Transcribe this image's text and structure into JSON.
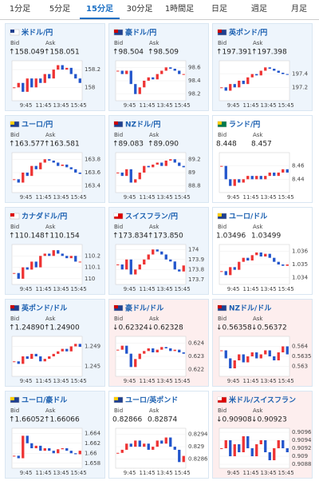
{
  "tabs": {
    "items": [
      "1分足",
      "5分足",
      "15分足",
      "30分足",
      "1時間足",
      "日足",
      "週足",
      "月足"
    ],
    "selected": 2
  },
  "bid_label": "Bid",
  "ask_label": "Ask",
  "tiles": [
    {
      "name": "米ドル/円",
      "bid": "↑158.049",
      "ask": "↑158.051",
      "bg": "#eef5fc",
      "flag": [
        "#fff",
        "#1f3f8f"
      ],
      "ylim": [
        157.85,
        158.3
      ],
      "yticks": [
        158.2,
        158
      ],
      "xticks": [
        "9:45",
        "11:45",
        "13:45",
        "15:45"
      ],
      "closes": [
        158.0,
        158.05,
        157.95,
        158.1,
        158.0,
        158.1,
        158.05,
        158.15,
        158.1,
        158.2,
        158.25,
        158.2,
        158.22,
        158.15,
        158.1,
        158.05
      ]
    },
    {
      "name": "豪ドル/円",
      "bid": "↑98.504",
      "ask": "↑98.509",
      "bg": "#eef5fc",
      "flag": [
        "#1f3f8f",
        "#c00"
      ],
      "ylim": [
        98.1,
        98.7
      ],
      "yticks": [
        98.6,
        98.4,
        98.2
      ],
      "xticks": [
        "9:45",
        "11:45",
        "13:45",
        "15:45"
      ],
      "closes": [
        98.55,
        98.5,
        98.55,
        98.35,
        98.2,
        98.3,
        98.4,
        98.45,
        98.42,
        98.5,
        98.55,
        98.6,
        98.58,
        98.55,
        98.5,
        98.5
      ]
    },
    {
      "name": "英ポンド/円",
      "bid": "↑197.391",
      "ask": "↑197.398",
      "bg": "#eef5fc",
      "flag": [
        "#1f3f8f",
        "#c00"
      ],
      "ylim": [
        197.0,
        197.6
      ],
      "yticks": [
        197.4,
        197.2
      ],
      "xticks": [
        "9:45",
        "11:45",
        "13:45",
        "15:45"
      ],
      "closes": [
        197.2,
        197.15,
        197.25,
        197.2,
        197.3,
        197.25,
        197.35,
        197.4,
        197.38,
        197.45,
        197.5,
        197.48,
        197.45,
        197.42,
        197.4,
        197.39
      ]
    },
    {
      "name": "ユーロ/円",
      "bid": "↑163.577",
      "ask": "↑163.581",
      "bg": "#eef5fc",
      "flag": [
        "#1f3f8f",
        "#fc0"
      ],
      "ylim": [
        163.3,
        163.9
      ],
      "yticks": [
        163.8,
        163.6,
        163.4
      ],
      "xticks": [
        "9:45",
        "11:45",
        "13:45",
        "15:45"
      ],
      "closes": [
        163.5,
        163.45,
        163.6,
        163.55,
        163.7,
        163.65,
        163.75,
        163.8,
        163.78,
        163.75,
        163.7,
        163.72,
        163.68,
        163.65,
        163.6,
        163.58
      ]
    },
    {
      "name": "NZドル/円",
      "bid": "↑89.083",
      "ask": "↑89.090",
      "bg": "#eef5fc",
      "flag": [
        "#1f3f8f",
        "#c00"
      ],
      "ylim": [
        88.7,
        89.3
      ],
      "yticks": [
        89.2,
        89,
        88.8
      ],
      "xticks": [
        "9:45",
        "11:45",
        "13:45",
        "15:45"
      ],
      "closes": [
        89.0,
        88.95,
        89.05,
        88.85,
        88.9,
        89.0,
        89.1,
        89.08,
        89.12,
        89.15,
        89.1,
        89.18,
        89.2,
        89.15,
        89.1,
        89.08
      ]
    },
    {
      "name": "ランド/円",
      "bid": "8.448",
      "ask": "8.457",
      "bg": "#ffffff",
      "flag": [
        "#007a4d",
        "#fc0"
      ],
      "ylim": [
        8.42,
        8.48
      ],
      "yticks": [
        8.46,
        8.44
      ],
      "xticks": [
        "9:45",
        "11:45",
        "13:45",
        "15:45"
      ],
      "closes": [
        8.46,
        8.44,
        8.43,
        8.44,
        8.435,
        8.44,
        8.445,
        8.44,
        8.445,
        8.44,
        8.445,
        8.45,
        8.445,
        8.45,
        8.455,
        8.45
      ]
    },
    {
      "name": "カナダドル/円",
      "bid": "↑110.148",
      "ask": "↑110.154",
      "bg": "#eef5fc",
      "flag": [
        "#fff",
        "#d00"
      ],
      "ylim": [
        109.95,
        110.3
      ],
      "yticks": [
        110.2,
        110.1,
        110
      ],
      "xticks": [
        "9:45",
        "11:45",
        "13:45",
        "15:45"
      ],
      "closes": [
        110.05,
        110.0,
        110.1,
        110.08,
        110.15,
        110.1,
        110.2,
        110.22,
        110.2,
        110.25,
        110.22,
        110.2,
        110.18,
        110.2,
        110.15,
        110.15
      ]
    },
    {
      "name": "スイスフラン/円",
      "bid": "↑173.834",
      "ask": "↑173.850",
      "bg": "#eef5fc",
      "flag": [
        "#d00",
        "#fff"
      ],
      "ylim": [
        173.65,
        174.05
      ],
      "yticks": [
        174,
        173.9,
        173.8,
        173.7
      ],
      "xticks": [
        "9:45",
        "11:45",
        "13:45",
        "15:45"
      ],
      "closes": [
        173.85,
        173.8,
        173.9,
        173.75,
        173.8,
        173.85,
        173.9,
        173.95,
        174.0,
        173.98,
        173.95,
        173.9,
        173.88,
        173.8,
        173.78,
        173.84
      ]
    },
    {
      "name": "ユーロ/ドル",
      "bid": "1.03496",
      "ask": "1.03499",
      "bg": "#ffffff",
      "flag": [
        "#1f3f8f",
        "#fc0"
      ],
      "ylim": [
        1.0335,
        1.0365
      ],
      "yticks": [
        1.036,
        1.035,
        1.034
      ],
      "xticks": [
        "9:45",
        "11:45",
        "13:45",
        "15:45"
      ],
      "closes": [
        1.0345,
        1.0342,
        1.0348,
        1.0346,
        1.0352,
        1.0355,
        1.0353,
        1.0357,
        1.0359,
        1.0356,
        1.0358,
        1.0355,
        1.0352,
        1.035,
        1.0349,
        1.035
      ]
    },
    {
      "name": "英ポンド/ドル",
      "bid": "↑1.24890",
      "ask": "↑1.24900",
      "bg": "#eef5fc",
      "flag": [
        "#1f3f8f",
        "#c00"
      ],
      "ylim": [
        1.243,
        1.251
      ],
      "yticks": [
        1.249,
        1.245
      ],
      "xticks": [
        "9:45",
        "11:45",
        "13:45",
        "15:45"
      ],
      "closes": [
        1.246,
        1.2455,
        1.247,
        1.2465,
        1.2475,
        1.247,
        1.246,
        1.2465,
        1.247,
        1.2475,
        1.248,
        1.2485,
        1.248,
        1.249,
        1.2495,
        1.2489
      ]
    },
    {
      "name": "豪ドル/ドル",
      "bid": "↓0.62324",
      "ask": "↓0.62328",
      "bg": "#fdeeee",
      "flag": [
        "#1f3f8f",
        "#c00"
      ],
      "ylim": [
        0.6215,
        0.6245
      ],
      "yticks": [
        0.624,
        0.623,
        0.622
      ],
      "xticks": [
        "9:45",
        "11:45",
        "13:45",
        "15:45"
      ],
      "closes": [
        0.6235,
        0.6238,
        0.6232,
        0.6222,
        0.6228,
        0.6232,
        0.6234,
        0.6236,
        0.6233,
        0.6235,
        0.6237,
        0.6236,
        0.6234,
        0.6235,
        0.6233,
        0.6232
      ]
    },
    {
      "name": "NZドル/ドル",
      "bid": "↓0.56358",
      "ask": "↓0.56372",
      "bg": "#fdeeee",
      "flag": [
        "#1f3f8f",
        "#c00"
      ],
      "ylim": [
        0.5625,
        0.5645
      ],
      "yticks": [
        0.564,
        0.5635,
        0.563
      ],
      "xticks": [
        "9:45",
        "11:45",
        "13:45",
        "15:45"
      ],
      "closes": [
        0.5638,
        0.5634,
        0.5629,
        0.5633,
        0.5636,
        0.5632,
        0.5635,
        0.5637,
        0.5634,
        0.5636,
        0.5638,
        0.5635,
        0.5633,
        0.5637,
        0.564,
        0.5636
      ]
    },
    {
      "name": "ユーロ/豪ドル",
      "bid": "↑1.66052",
      "ask": "↑1.66066",
      "bg": "#eef5fc",
      "flag": [
        "#1f3f8f",
        "#fc0"
      ],
      "ylim": [
        1.657,
        1.665
      ],
      "yticks": [
        1.664,
        1.662,
        1.66,
        1.658
      ],
      "xticks": [
        "9:45",
        "11:45",
        "13:45",
        "15:45"
      ],
      "closes": [
        1.6595,
        1.659,
        1.6635,
        1.662,
        1.661,
        1.6615,
        1.6605,
        1.661,
        1.6605,
        1.66,
        1.6608,
        1.661,
        1.6605,
        1.66,
        1.6598,
        1.6605
      ]
    },
    {
      "name": "ユーロ/英ポンド",
      "bid": "0.82866",
      "ask": "0.82874",
      "bg": "#ffffff",
      "flag": [
        "#1f3f8f",
        "#fc0"
      ],
      "ylim": [
        0.8283,
        0.8296
      ],
      "yticks": [
        0.8294,
        0.829,
        0.8286
      ],
      "xticks": [
        "9:45",
        "11:45",
        "13:45",
        "15:45"
      ],
      "closes": [
        0.8288,
        0.8289,
        0.8291,
        0.829,
        0.8292,
        0.829,
        0.8291,
        0.8289,
        0.829,
        0.8292,
        0.8291,
        0.8293,
        0.829,
        0.8289,
        0.8285,
        0.8287
      ]
    },
    {
      "name": "米ドル/スイスフラン",
      "bid": "↓0.90908",
      "ask": "↓0.90923",
      "bg": "#fdeeee",
      "flag": [
        "#d00",
        "#fff"
      ],
      "ylim": [
        0.9087,
        0.9097
      ],
      "yticks": [
        0.9096,
        0.9094,
        0.9092,
        0.909,
        0.9088
      ],
      "xticks": [
        "9:45",
        "11:45",
        "13:45",
        "15:45"
      ],
      "closes": [
        0.9092,
        0.9094,
        0.909,
        0.9093,
        0.9091,
        0.9095,
        0.9092,
        0.909,
        0.9093,
        0.9094,
        0.9091,
        0.9089,
        0.9092,
        0.9094,
        0.9092,
        0.9091
      ]
    }
  ]
}
